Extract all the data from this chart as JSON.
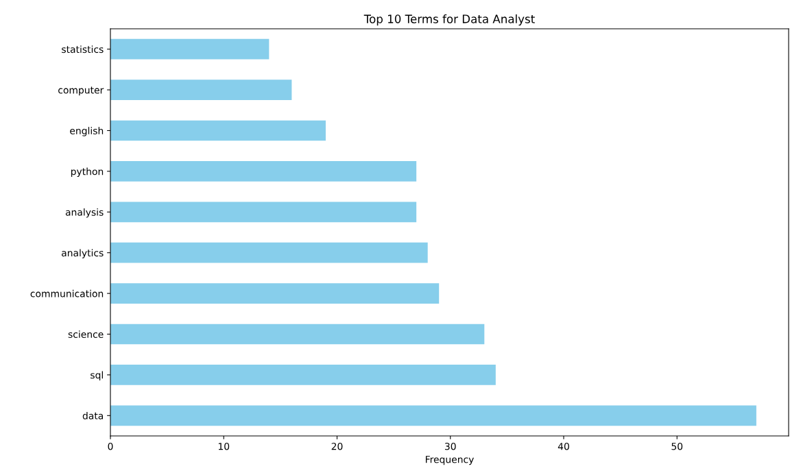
{
  "chart_data": {
    "type": "bar",
    "orientation": "horizontal",
    "title": "Top 10 Terms for Data Analyst",
    "xlabel": "Frequency",
    "categories": [
      "statistics",
      "computer",
      "english",
      "python",
      "analysis",
      "analytics",
      "communication",
      "science",
      "sql",
      "data"
    ],
    "values": [
      14,
      16,
      19,
      27,
      27,
      28,
      29,
      33,
      34,
      57
    ],
    "color": "#87ceeb",
    "xlim": [
      0,
      59.85
    ],
    "xticks": [
      0,
      10,
      20,
      30,
      40,
      50
    ],
    "grid": false,
    "legend": false
  }
}
